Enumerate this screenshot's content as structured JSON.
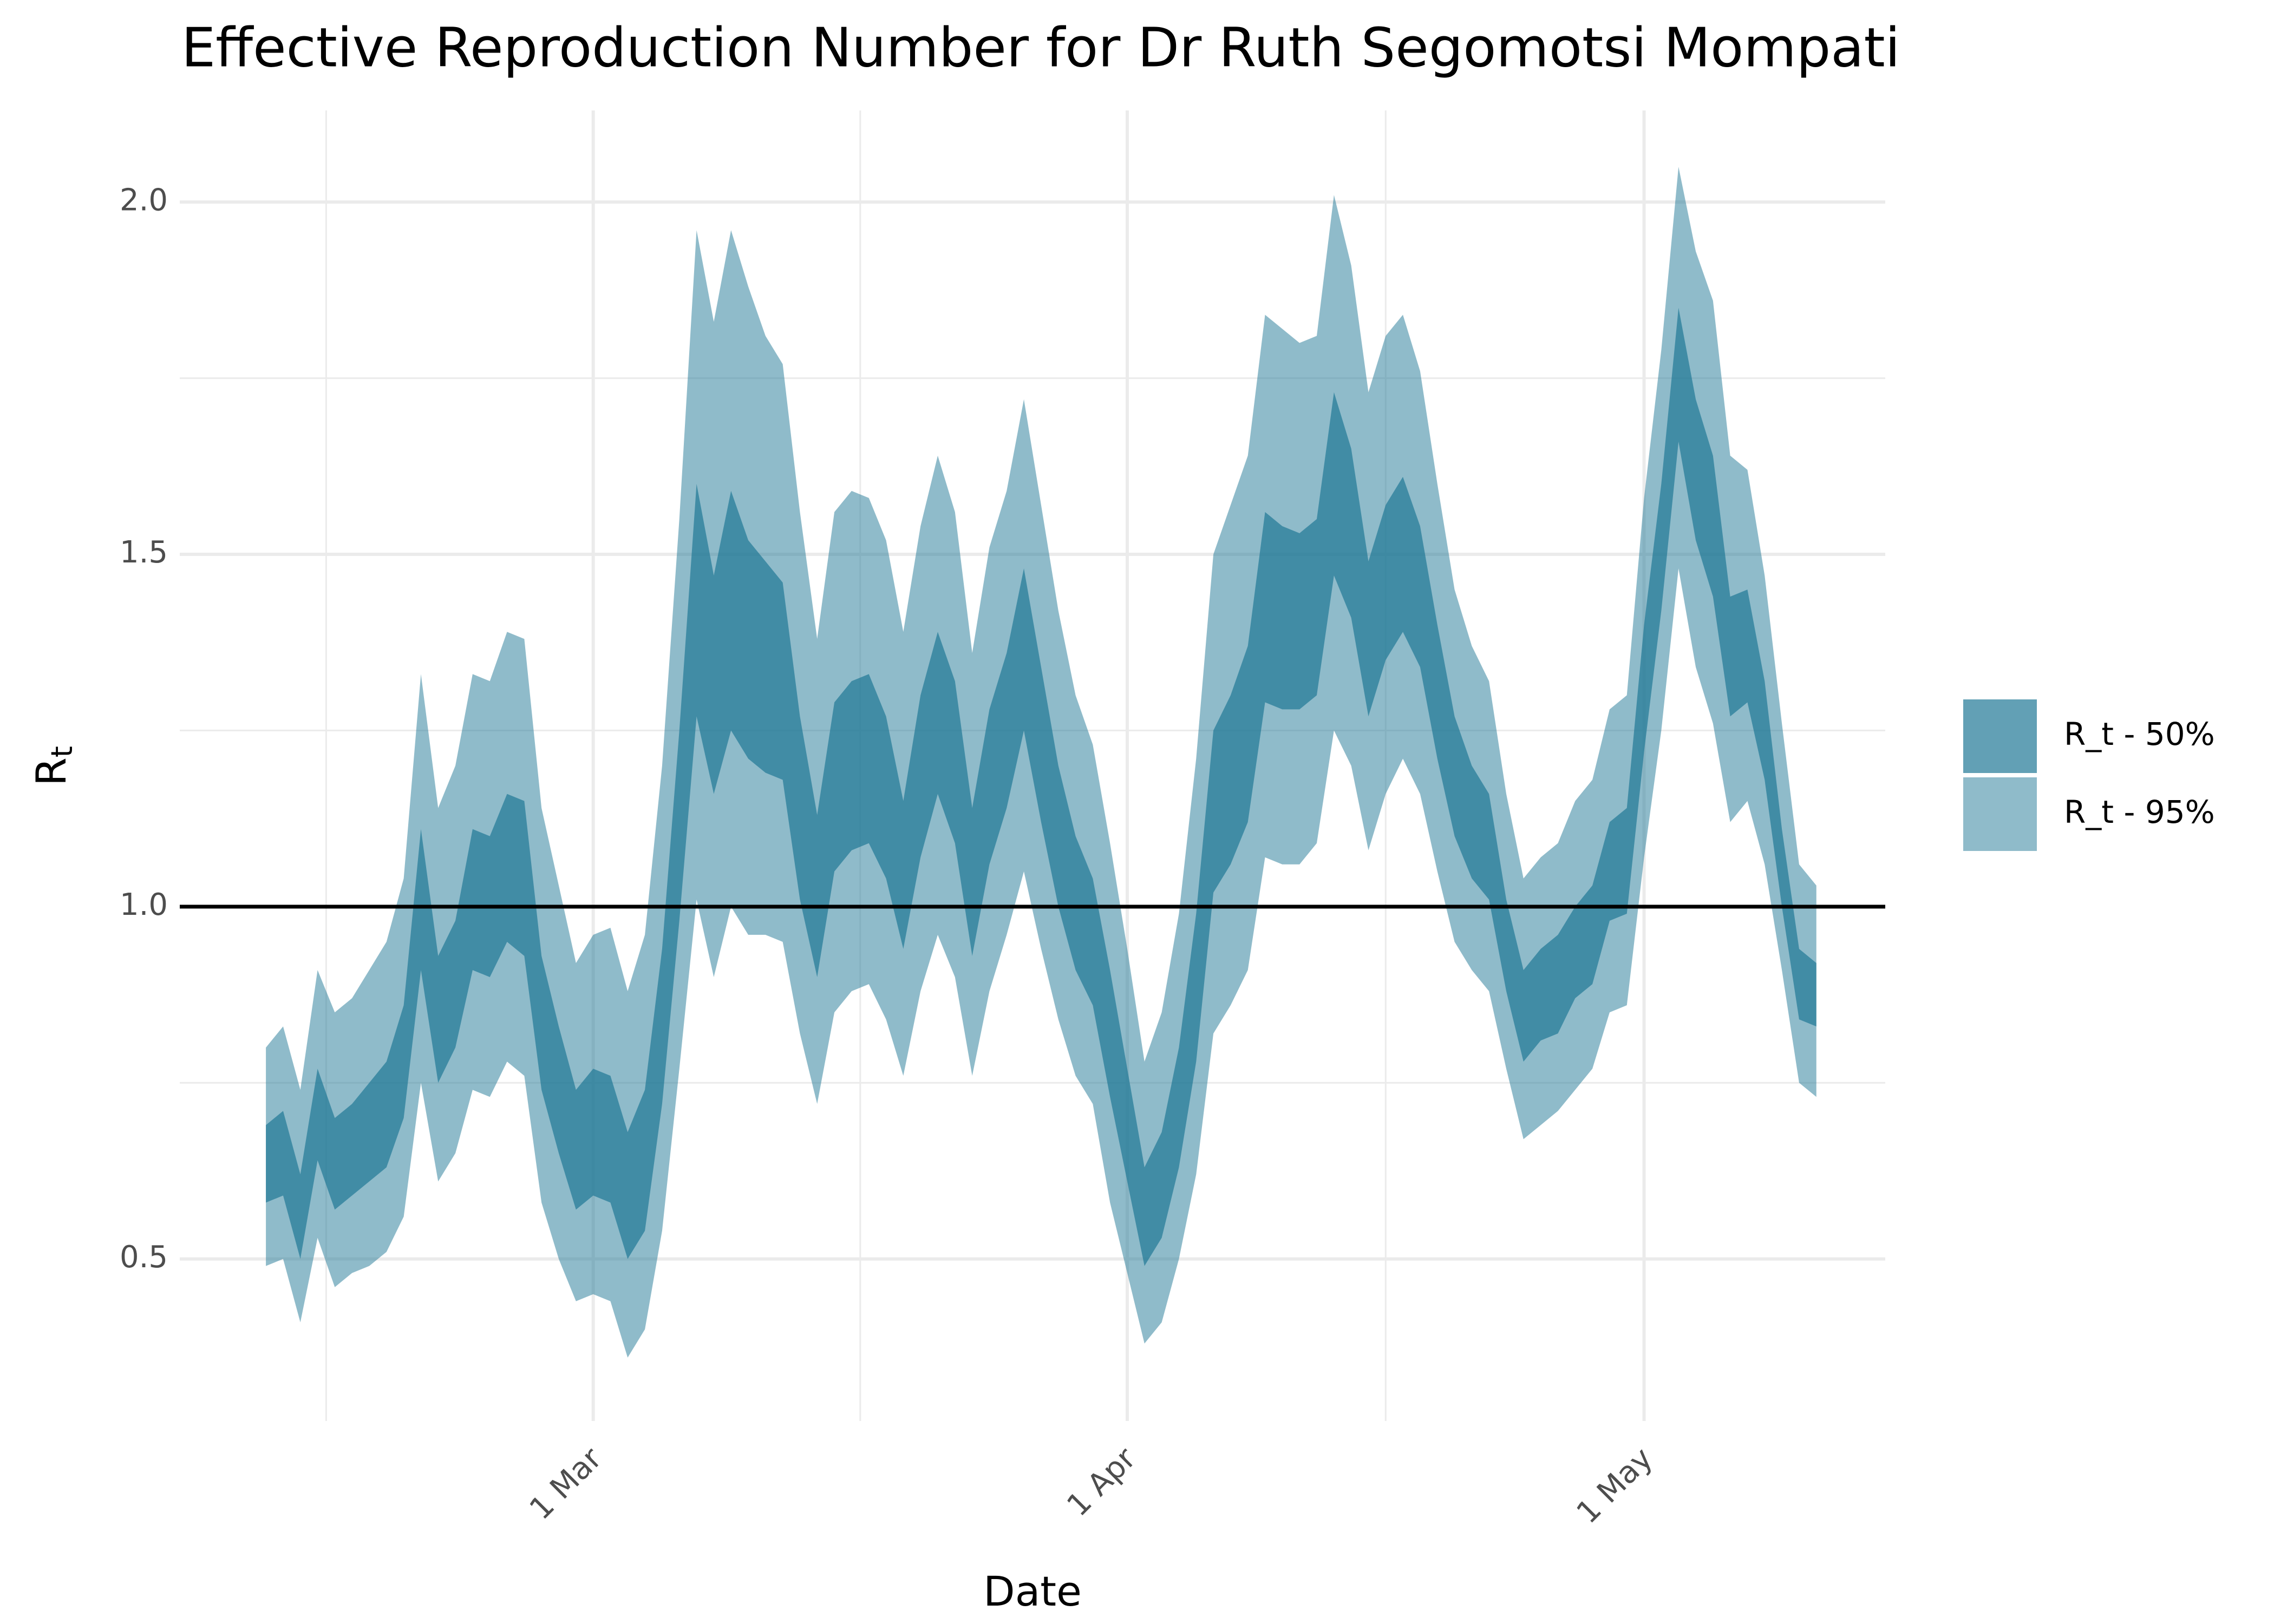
{
  "chart_data": {
    "type": "ribbon",
    "title": "Effective Reproduction Number for Dr Ruth Segomotsi Mompati",
    "xlabel": "Date",
    "ylabel": "R",
    "ylabel_subscript": "t",
    "x": [
      "10 Feb",
      "11 Feb",
      "12 Feb",
      "13 Feb",
      "14 Feb",
      "15 Feb",
      "16 Feb",
      "17 Feb",
      "18 Feb",
      "19 Feb",
      "20 Feb",
      "21 Feb",
      "22 Feb",
      "23 Feb",
      "24 Feb",
      "25 Feb",
      "26 Feb",
      "27 Feb",
      "28 Feb",
      "1 Mar",
      "2 Mar",
      "3 Mar",
      "4 Mar",
      "5 Mar",
      "6 Mar",
      "7 Mar",
      "8 Mar",
      "9 Mar",
      "10 Mar",
      "11 Mar",
      "12 Mar",
      "13 Mar",
      "14 Mar",
      "15 Mar",
      "16 Mar",
      "17 Mar",
      "18 Mar",
      "19 Mar",
      "20 Mar",
      "21 Mar",
      "22 Mar",
      "23 Mar",
      "24 Mar",
      "25 Mar",
      "26 Mar",
      "27 Mar",
      "28 Mar",
      "29 Mar",
      "30 Mar",
      "31 Mar",
      "1 Apr",
      "2 Apr",
      "3 Apr",
      "4 Apr",
      "5 Apr",
      "6 Apr",
      "7 Apr",
      "8 Apr",
      "9 Apr",
      "10 Apr",
      "11 Apr",
      "12 Apr",
      "13 Apr",
      "14 Apr",
      "15 Apr",
      "16 Apr",
      "17 Apr",
      "18 Apr",
      "19 Apr",
      "20 Apr",
      "21 Apr",
      "22 Apr",
      "23 Apr",
      "24 Apr",
      "25 Apr",
      "26 Apr",
      "27 Apr",
      "28 Apr",
      "29 Apr",
      "30 Apr",
      "1 May",
      "2 May",
      "3 May",
      "4 May",
      "5 May",
      "6 May",
      "7 May",
      "8 May",
      "9 May",
      "10 May",
      "11 May"
    ],
    "series": [
      {
        "name": "R_t - 50%",
        "color": "#1f7896",
        "alpha": 0.7,
        "upper": [
          0.69,
          0.71,
          0.62,
          0.77,
          0.7,
          0.72,
          0.75,
          0.78,
          0.86,
          1.11,
          0.93,
          0.98,
          1.11,
          1.1,
          1.16,
          1.15,
          0.93,
          0.83,
          0.74,
          0.77,
          0.76,
          0.68,
          0.74,
          0.94,
          1.25,
          1.6,
          1.47,
          1.59,
          1.52,
          1.49,
          1.46,
          1.27,
          1.13,
          1.29,
          1.32,
          1.33,
          1.27,
          1.15,
          1.3,
          1.39,
          1.32,
          1.14,
          1.28,
          1.36,
          1.48,
          1.34,
          1.2,
          1.1,
          1.04,
          0.91,
          0.77,
          0.63,
          0.68,
          0.8,
          0.99,
          1.25,
          1.3,
          1.37,
          1.56,
          1.54,
          1.53,
          1.55,
          1.73,
          1.65,
          1.49,
          1.57,
          1.61,
          1.54,
          1.4,
          1.27,
          1.2,
          1.16,
          1.01,
          0.91,
          0.94,
          0.96,
          1.0,
          1.03,
          1.12,
          1.14,
          1.4,
          1.6,
          1.85,
          1.72,
          1.64,
          1.44,
          1.45,
          1.32,
          1.11,
          0.94,
          0.92
        ],
        "lower": [
          0.58,
          0.59,
          0.5,
          0.64,
          0.57,
          0.59,
          0.61,
          0.63,
          0.7,
          0.91,
          0.75,
          0.8,
          0.91,
          0.9,
          0.95,
          0.93,
          0.74,
          0.65,
          0.57,
          0.59,
          0.58,
          0.5,
          0.54,
          0.72,
          0.98,
          1.27,
          1.16,
          1.25,
          1.21,
          1.19,
          1.18,
          1.01,
          0.9,
          1.05,
          1.08,
          1.09,
          1.04,
          0.94,
          1.07,
          1.16,
          1.09,
          0.93,
          1.06,
          1.14,
          1.25,
          1.12,
          1.0,
          0.91,
          0.86,
          0.73,
          0.61,
          0.49,
          0.53,
          0.63,
          0.78,
          1.02,
          1.06,
          1.12,
          1.29,
          1.28,
          1.28,
          1.3,
          1.47,
          1.41,
          1.27,
          1.35,
          1.39,
          1.34,
          1.21,
          1.1,
          1.04,
          1.01,
          0.88,
          0.78,
          0.81,
          0.82,
          0.87,
          0.89,
          0.98,
          0.99,
          1.22,
          1.42,
          1.66,
          1.52,
          1.44,
          1.27,
          1.29,
          1.18,
          1.0,
          0.84,
          0.83
        ]
      },
      {
        "name": "R_t - 95%",
        "color": "#1f7896",
        "alpha": 0.5,
        "upper": [
          0.8,
          0.83,
          0.74,
          0.91,
          0.85,
          0.87,
          0.91,
          0.95,
          1.04,
          1.33,
          1.14,
          1.2,
          1.33,
          1.32,
          1.39,
          1.38,
          1.14,
          1.03,
          0.92,
          0.96,
          0.97,
          0.88,
          0.96,
          1.2,
          1.55,
          1.96,
          1.83,
          1.96,
          1.88,
          1.81,
          1.77,
          1.56,
          1.38,
          1.56,
          1.59,
          1.58,
          1.52,
          1.39,
          1.54,
          1.64,
          1.56,
          1.36,
          1.51,
          1.59,
          1.72,
          1.57,
          1.42,
          1.3,
          1.23,
          1.09,
          0.94,
          0.78,
          0.85,
          0.99,
          1.21,
          1.5,
          1.57,
          1.64,
          1.84,
          1.82,
          1.8,
          1.81,
          2.01,
          1.91,
          1.73,
          1.81,
          1.84,
          1.76,
          1.6,
          1.45,
          1.37,
          1.32,
          1.16,
          1.04,
          1.07,
          1.09,
          1.15,
          1.18,
          1.28,
          1.3,
          1.58,
          1.79,
          2.05,
          1.93,
          1.86,
          1.64,
          1.62,
          1.47,
          1.26,
          1.06,
          1.03
        ],
        "lower": [
          0.49,
          0.5,
          0.41,
          0.53,
          0.46,
          0.48,
          0.49,
          0.51,
          0.56,
          0.75,
          0.61,
          0.65,
          0.74,
          0.73,
          0.78,
          0.76,
          0.58,
          0.5,
          0.44,
          0.45,
          0.44,
          0.36,
          0.4,
          0.54,
          0.77,
          1.01,
          0.9,
          1.0,
          0.96,
          0.96,
          0.95,
          0.82,
          0.72,
          0.85,
          0.88,
          0.89,
          0.84,
          0.76,
          0.88,
          0.96,
          0.9,
          0.76,
          0.88,
          0.96,
          1.05,
          0.94,
          0.84,
          0.76,
          0.72,
          0.58,
          0.48,
          0.38,
          0.41,
          0.5,
          0.62,
          0.82,
          0.86,
          0.91,
          1.07,
          1.06,
          1.06,
          1.09,
          1.25,
          1.2,
          1.08,
          1.16,
          1.21,
          1.16,
          1.05,
          0.95,
          0.91,
          0.88,
          0.77,
          0.67,
          0.69,
          0.71,
          0.74,
          0.77,
          0.85,
          0.86,
          1.07,
          1.25,
          1.48,
          1.34,
          1.26,
          1.12,
          1.15,
          1.06,
          0.91,
          0.75,
          0.73
        ]
      }
    ],
    "xlim": [
      "5 Feb",
      "15 May"
    ],
    "xticks": [
      "1 Mar",
      "1 Apr",
      "1 May"
    ],
    "ylim": [
      0.27,
      2.13
    ],
    "yticks": [
      0.5,
      {
        "value": 1.0,
        "label": "1.0"
      },
      1.5,
      {
        "value": 2.0,
        "label": "2.0"
      }
    ],
    "hline": 1,
    "grid": true,
    "legend": "right"
  }
}
